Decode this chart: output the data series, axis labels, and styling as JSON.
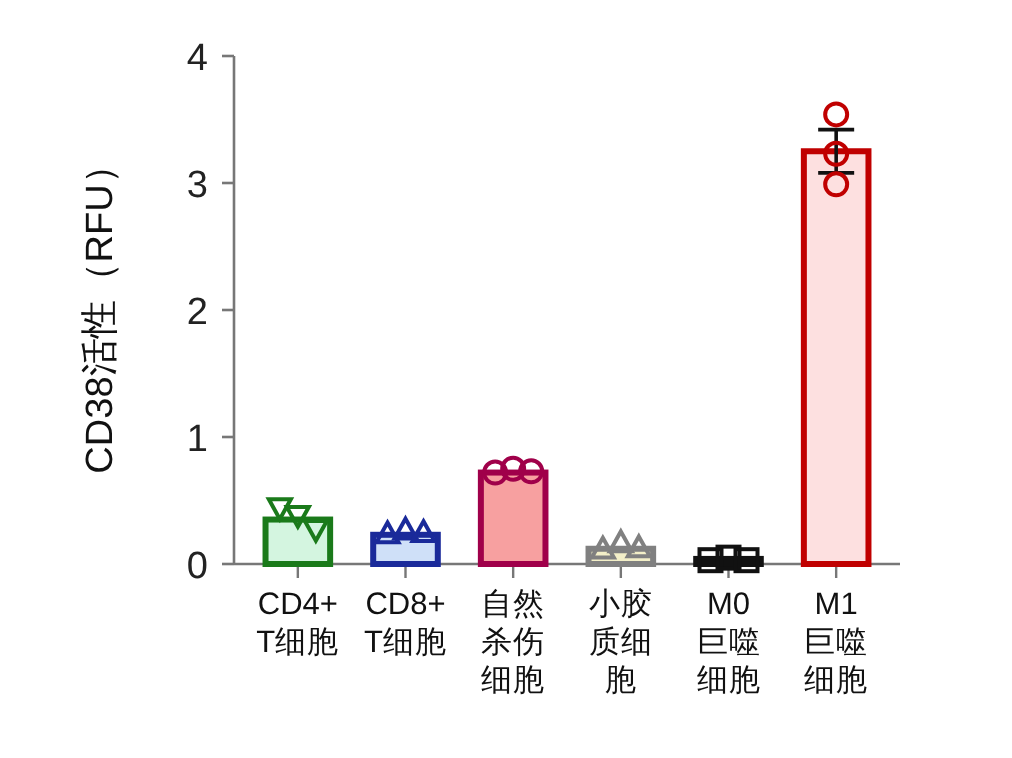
{
  "chart_data": {
    "type": "bar",
    "ylabel": "CD38活性（RFU）",
    "categories": [
      "CD4+\nT细胞",
      "CD8+\nT细胞",
      "自然杀伤细胞",
      "小胶质细胞",
      "M0巨噬细胞",
      "M1巨噬细胞"
    ],
    "ylim": [
      0,
      4
    ],
    "yticks": [
      0,
      1,
      2,
      3,
      4
    ],
    "grid": false,
    "series": [
      {
        "values": [
          0.35,
          0.23,
          0.72,
          0.12,
          0.04,
          3.25
        ],
        "colors": [
          "#d4f5e0",
          "#cfe0f8",
          "#f7a0a0",
          "#f3efc8",
          "#ffffff",
          "#fde0e0"
        ],
        "errors": [
          null,
          null,
          null,
          null,
          null,
          0.17
        ]
      },
      {
        "type": "scatter",
        "color": "#1a7a1a",
        "marker": "triangle-down",
        "x": [
          "CD4+\nT细胞",
          "CD4+\nT细胞",
          "CD4+\nT细胞"
        ],
        "values": [
          0.44,
          0.38,
          0.27
        ]
      },
      {
        "type": "scatter",
        "color": "#1a2a9a",
        "marker": "triangle",
        "x": [
          "CD8+\nT细胞",
          "CD8+\nT细胞",
          "CD8+\nT细胞"
        ],
        "values": [
          0.24,
          0.27,
          0.25
        ]
      },
      {
        "type": "scatter",
        "color": "#a0004a",
        "marker": "circle",
        "x": [
          "自然杀伤细胞",
          "自然杀伤细胞",
          "自然杀伤细胞"
        ],
        "values": [
          0.72,
          0.75,
          0.73
        ]
      },
      {
        "type": "scatter",
        "color": "#808080",
        "marker": "triangle",
        "x": [
          "小胶质细胞",
          "小胶质细胞",
          "小胶质细胞"
        ],
        "values": [
          0.12,
          0.17,
          0.13
        ]
      },
      {
        "type": "scatter",
        "color": "#111111",
        "marker": "square",
        "x": [
          "M0巨噬细胞",
          "M0巨噬细胞",
          "M0巨噬细胞"
        ],
        "values": [
          0.03,
          0.05,
          0.03
        ]
      },
      {
        "type": "scatter",
        "color": "#c00000",
        "marker": "circle",
        "x": [
          "M1巨噬细胞",
          "M1巨噬细胞",
          "M1巨噬细胞"
        ],
        "values": [
          3.54,
          3.23,
          2.99
        ]
      }
    ]
  }
}
